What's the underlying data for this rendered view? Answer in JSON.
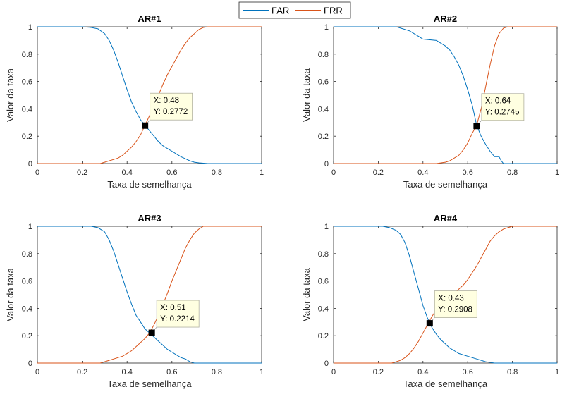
{
  "legend": {
    "placement": "top-center",
    "entries": [
      {
        "label": "FAR",
        "color": "#0072BD"
      },
      {
        "label": "FRR",
        "color": "#D95319"
      }
    ]
  },
  "chart_data": [
    {
      "type": "line",
      "title": "AR#1",
      "xlabel": "Taxa de semelhança",
      "ylabel": "Valor da taxa",
      "xlim": [
        0,
        1
      ],
      "ylim": [
        0,
        1
      ],
      "xticks": [
        "0",
        "0.2",
        "0.4",
        "0.6",
        "0.8",
        "1"
      ],
      "yticks": [
        "0",
        "0.2",
        "0.4",
        "0.6",
        "0.8",
        "1"
      ],
      "grid": false,
      "series": [
        {
          "name": "FAR",
          "x": [
            0,
            0.2,
            0.24,
            0.27,
            0.3,
            0.32,
            0.34,
            0.36,
            0.38,
            0.4,
            0.42,
            0.44,
            0.46,
            0.48,
            0.5,
            0.52,
            0.54,
            0.56,
            0.58,
            0.6,
            0.62,
            0.64,
            0.66,
            0.68,
            0.7,
            0.72,
            0.76,
            1
          ],
          "y": [
            1,
            1,
            0.995,
            0.985,
            0.95,
            0.9,
            0.83,
            0.74,
            0.64,
            0.54,
            0.45,
            0.38,
            0.32,
            0.28,
            0.24,
            0.2,
            0.16,
            0.13,
            0.11,
            0.09,
            0.07,
            0.05,
            0.035,
            0.02,
            0.01,
            0.005,
            0,
            0
          ]
        },
        {
          "name": "FRR",
          "x": [
            0,
            0.28,
            0.3,
            0.32,
            0.34,
            0.36,
            0.38,
            0.4,
            0.42,
            0.44,
            0.46,
            0.48,
            0.5,
            0.52,
            0.54,
            0.56,
            0.58,
            0.6,
            0.62,
            0.64,
            0.66,
            0.68,
            0.7,
            0.72,
            0.74,
            0.76,
            0.78,
            0.8,
            1
          ],
          "y": [
            0,
            0,
            0.01,
            0.02,
            0.03,
            0.04,
            0.06,
            0.09,
            0.12,
            0.16,
            0.21,
            0.28,
            0.35,
            0.42,
            0.5,
            0.58,
            0.65,
            0.71,
            0.77,
            0.83,
            0.88,
            0.92,
            0.95,
            0.98,
            0.995,
            1,
            1,
            1,
            1
          ]
        }
      ],
      "datatip": {
        "x": 0.48,
        "y": 0.2772,
        "label_x": "X: 0.48",
        "label_y": "Y: 0.2772"
      }
    },
    {
      "type": "line",
      "title": "AR#2",
      "xlabel": "Taxa de semelhança",
      "ylabel": "Valor da taxa",
      "xlim": [
        0,
        1
      ],
      "ylim": [
        0,
        1
      ],
      "xticks": [
        "0",
        "0.2",
        "0.4",
        "0.6",
        "0.8",
        "1"
      ],
      "yticks": [
        "0",
        "0.2",
        "0.4",
        "0.6",
        "0.8",
        "1"
      ],
      "grid": false,
      "series": [
        {
          "name": "FAR",
          "x": [
            0,
            0.28,
            0.3,
            0.34,
            0.36,
            0.38,
            0.4,
            0.46,
            0.48,
            0.5,
            0.52,
            0.54,
            0.56,
            0.58,
            0.6,
            0.62,
            0.64,
            0.66,
            0.68,
            0.7,
            0.72,
            0.74,
            0.75,
            0.76,
            1
          ],
          "y": [
            1,
            1,
            0.99,
            0.97,
            0.95,
            0.93,
            0.91,
            0.9,
            0.88,
            0.86,
            0.83,
            0.78,
            0.72,
            0.64,
            0.54,
            0.43,
            0.28,
            0.2,
            0.14,
            0.09,
            0.05,
            0.05,
            0.02,
            0,
            0
          ]
        },
        {
          "name": "FRR",
          "x": [
            0,
            0.46,
            0.5,
            0.52,
            0.54,
            0.56,
            0.58,
            0.6,
            0.62,
            0.64,
            0.66,
            0.68,
            0.7,
            0.72,
            0.74,
            0.76,
            0.78,
            0.8,
            1
          ],
          "y": [
            0,
            0,
            0.01,
            0.02,
            0.04,
            0.06,
            0.1,
            0.15,
            0.22,
            0.28,
            0.4,
            0.56,
            0.72,
            0.86,
            0.95,
            0.99,
            1,
            1,
            1
          ]
        }
      ],
      "datatip": {
        "x": 0.64,
        "y": 0.2745,
        "label_x": "X: 0.64",
        "label_y": "Y: 0.2745"
      }
    },
    {
      "type": "line",
      "title": "AR#3",
      "xlabel": "Taxa de semelhança",
      "ylabel": "Valor da taxa",
      "xlim": [
        0,
        1
      ],
      "ylim": [
        0,
        1
      ],
      "xticks": [
        "0",
        "0.2",
        "0.4",
        "0.6",
        "0.8",
        "1"
      ],
      "yticks": [
        "0",
        "0.2",
        "0.4",
        "0.6",
        "0.8",
        "1"
      ],
      "grid": false,
      "series": [
        {
          "name": "FAR",
          "x": [
            0,
            0.24,
            0.27,
            0.3,
            0.32,
            0.34,
            0.36,
            0.38,
            0.4,
            0.42,
            0.44,
            0.46,
            0.48,
            0.5,
            0.52,
            0.54,
            0.56,
            0.58,
            0.6,
            0.62,
            0.64,
            0.66,
            0.68,
            0.7,
            1
          ],
          "y": [
            1,
            1,
            0.99,
            0.96,
            0.9,
            0.82,
            0.72,
            0.62,
            0.52,
            0.43,
            0.35,
            0.3,
            0.25,
            0.22,
            0.19,
            0.16,
            0.13,
            0.1,
            0.08,
            0.06,
            0.04,
            0.03,
            0.01,
            0,
            0
          ]
        },
        {
          "name": "FRR",
          "x": [
            0,
            0.28,
            0.3,
            0.32,
            0.34,
            0.36,
            0.38,
            0.4,
            0.42,
            0.44,
            0.46,
            0.48,
            0.5,
            0.52,
            0.54,
            0.56,
            0.58,
            0.6,
            0.62,
            0.64,
            0.66,
            0.68,
            0.7,
            0.72,
            0.74,
            0.76,
            0.78,
            1
          ],
          "y": [
            0,
            0,
            0.01,
            0.02,
            0.03,
            0.04,
            0.05,
            0.07,
            0.09,
            0.12,
            0.15,
            0.18,
            0.22,
            0.28,
            0.35,
            0.43,
            0.51,
            0.6,
            0.68,
            0.76,
            0.84,
            0.9,
            0.95,
            0.98,
            1,
            1,
            1,
            1
          ]
        }
      ],
      "datatip": {
        "x": 0.51,
        "y": 0.2214,
        "label_x": "X: 0.51",
        "label_y": "Y: 0.2214"
      }
    },
    {
      "type": "line",
      "title": "AR#4",
      "xlabel": "Taxa de semelhança",
      "ylabel": "Valor da taxa",
      "xlim": [
        0,
        1
      ],
      "ylim": [
        0,
        1
      ],
      "xticks": [
        "0",
        "0.2",
        "0.4",
        "0.6",
        "0.8",
        "1"
      ],
      "yticks": [
        "0",
        "0.2",
        "0.4",
        "0.6",
        "0.8",
        "1"
      ],
      "grid": false,
      "series": [
        {
          "name": "FAR",
          "x": [
            0,
            0.22,
            0.25,
            0.28,
            0.3,
            0.32,
            0.34,
            0.36,
            0.38,
            0.4,
            0.42,
            0.44,
            0.46,
            0.48,
            0.5,
            0.52,
            0.54,
            0.56,
            0.58,
            0.6,
            0.62,
            0.64,
            0.66,
            0.68,
            0.7,
            0.72,
            1
          ],
          "y": [
            1,
            1,
            0.99,
            0.97,
            0.94,
            0.88,
            0.78,
            0.66,
            0.54,
            0.42,
            0.33,
            0.26,
            0.21,
            0.17,
            0.14,
            0.11,
            0.09,
            0.07,
            0.06,
            0.05,
            0.04,
            0.03,
            0.02,
            0.01,
            0.005,
            0,
            0
          ]
        },
        {
          "name": "FRR",
          "x": [
            0,
            0.26,
            0.28,
            0.3,
            0.32,
            0.34,
            0.36,
            0.38,
            0.4,
            0.42,
            0.44,
            0.46,
            0.48,
            0.5,
            0.52,
            0.54,
            0.56,
            0.58,
            0.6,
            0.62,
            0.64,
            0.66,
            0.68,
            0.7,
            0.72,
            0.74,
            0.76,
            0.78,
            0.8,
            1
          ],
          "y": [
            0,
            0,
            0.01,
            0.02,
            0.04,
            0.07,
            0.11,
            0.16,
            0.22,
            0.28,
            0.34,
            0.39,
            0.43,
            0.46,
            0.49,
            0.51,
            0.54,
            0.57,
            0.61,
            0.66,
            0.71,
            0.77,
            0.83,
            0.89,
            0.93,
            0.96,
            0.98,
            0.99,
            1,
            1
          ]
        }
      ],
      "datatip": {
        "x": 0.43,
        "y": 0.2908,
        "label_x": "X: 0.43",
        "label_y": "Y: 0.2908"
      }
    }
  ]
}
